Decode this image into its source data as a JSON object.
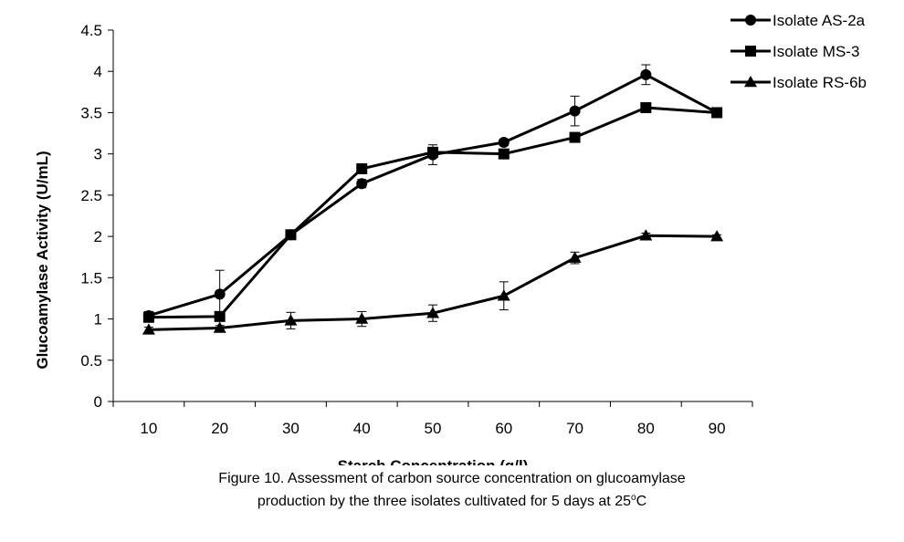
{
  "chart_data": {
    "type": "line",
    "title": "",
    "xlabel": "Starch Concentration (g/l)",
    "ylabel": "Glucoamylase Activity (U/mL)",
    "categories": [
      "10",
      "20",
      "30",
      "40",
      "50",
      "60",
      "70",
      "80",
      "90"
    ],
    "ylim": [
      0,
      4.5
    ],
    "yticks": [
      "0",
      "0.5",
      "1",
      "1.5",
      "2",
      "2.5",
      "3",
      "3.5",
      "4",
      "4.5"
    ],
    "grid": false,
    "legend_position": "top-right",
    "series": [
      {
        "name": "Isolate AS-2a",
        "marker": "circle",
        "values": [
          1.04,
          1.3,
          2.02,
          2.64,
          2.99,
          3.14,
          3.52,
          3.96,
          3.5
        ],
        "errors": [
          0.05,
          0.29,
          0.04,
          0.05,
          0.12,
          0.04,
          0.18,
          0.12,
          0.06
        ]
      },
      {
        "name": "Isolate MS-3",
        "marker": "square",
        "values": [
          1.02,
          1.03,
          2.02,
          2.82,
          3.02,
          3.0,
          3.2,
          3.56,
          3.5
        ],
        "errors": [
          0.03,
          0.03,
          0.03,
          0.03,
          0.03,
          0.03,
          0.03,
          0.03,
          0.03
        ]
      },
      {
        "name": "Isolate RS-6b",
        "marker": "triangle",
        "values": [
          0.87,
          0.89,
          0.98,
          1.0,
          1.07,
          1.28,
          1.74,
          2.01,
          2.0
        ],
        "errors": [
          0.03,
          0.03,
          0.1,
          0.09,
          0.1,
          0.17,
          0.07,
          0.03,
          0.02
        ]
      }
    ]
  },
  "caption": {
    "line1": "Figure 10. Assessment of carbon source concentration on glucoamylase",
    "line2_prefix": "production by the three isolates cultivated for 5 days at 25",
    "line2_super": "o",
    "line2_suffix": "C"
  }
}
